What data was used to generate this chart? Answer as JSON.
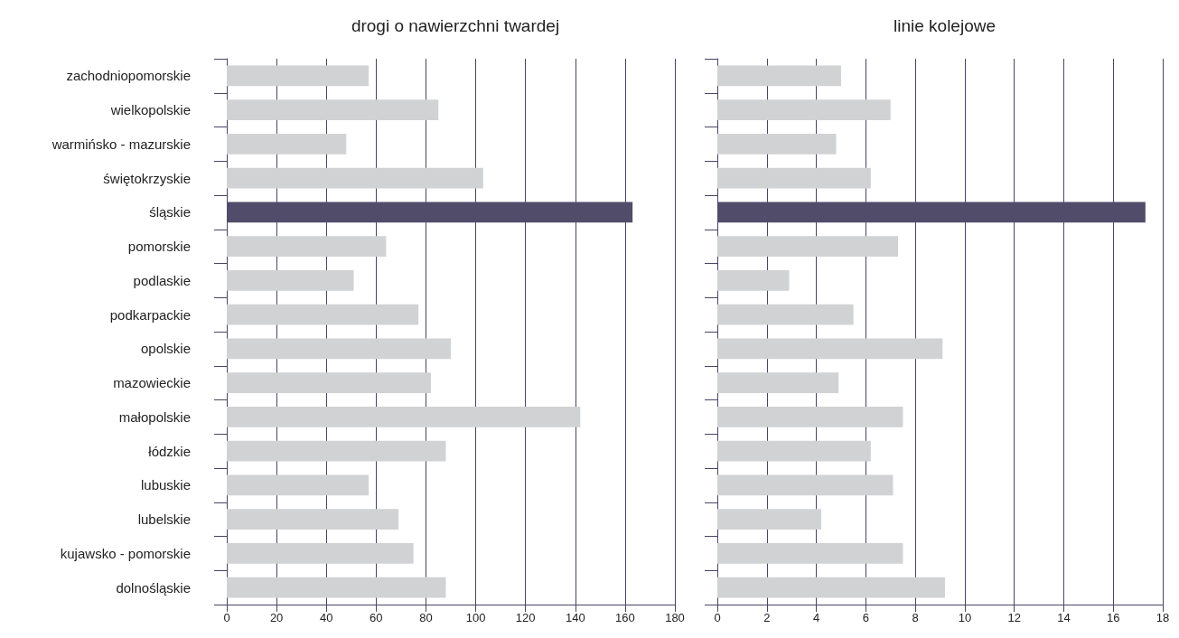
{
  "chart_data": [
    {
      "type": "bar",
      "orientation": "horizontal",
      "title": "drogi o nawierzchni twardej",
      "categories": [
        "zachodniopomorskie",
        "wielkopolskie",
        "warmińsko - mazurskie",
        "świętokrzyskie",
        "śląskie",
        "pomorskie",
        "podlaskie",
        "podkarpackie",
        "opolskie",
        "mazowieckie",
        "małopolskie",
        "łódzkie",
        "lubuskie",
        "lubelskie",
        "kujawsko - pomorskie",
        "dolnośląskie"
      ],
      "values": [
        57,
        85,
        48,
        103,
        163,
        64,
        51,
        77,
        90,
        82,
        142,
        88,
        57,
        69,
        75,
        88
      ],
      "colors": [
        "#d1d2d4",
        "#d1d2d4",
        "#d1d2d4",
        "#d1d2d4",
        "#524c6b",
        "#d1d2d4",
        "#d1d2d4",
        "#d1d2d4",
        "#d1d2d4",
        "#d1d2d4",
        "#d1d2d4",
        "#d1d2d4",
        "#d1d2d4",
        "#d1d2d4",
        "#d1d2d4",
        "#d1d2d4"
      ],
      "xlim": [
        0,
        180
      ],
      "xticks": [
        0,
        20,
        40,
        60,
        80,
        100,
        120,
        140,
        160,
        180
      ],
      "grid": "x"
    },
    {
      "type": "bar",
      "orientation": "horizontal",
      "title": "linie kolejowe",
      "categories": [
        null,
        null,
        null,
        null,
        null,
        null,
        null,
        null,
        null,
        null,
        null,
        null,
        null,
        null,
        null,
        null
      ],
      "values": [
        5.0,
        7.0,
        4.8,
        6.2,
        17.3,
        7.3,
        2.9,
        5.5,
        9.1,
        4.9,
        7.5,
        6.2,
        7.1,
        4.2,
        7.5,
        9.2
      ],
      "colors": [
        "#d1d2d4",
        "#d1d2d4",
        "#d1d2d4",
        "#d1d2d4",
        "#524c6b",
        "#d1d2d4",
        "#d1d2d4",
        "#d1d2d4",
        "#d1d2d4",
        "#d1d2d4",
        "#d1d2d4",
        "#d1d2d4",
        "#d1d2d4",
        "#d1d2d4",
        "#d1d2d4",
        "#d1d2d4"
      ],
      "xlim": [
        0,
        18
      ],
      "xticks": [
        0,
        2,
        4,
        6,
        8,
        10,
        12,
        14,
        16,
        18
      ],
      "grid": "x",
      "tick_labels": "x"
    }
  ]
}
